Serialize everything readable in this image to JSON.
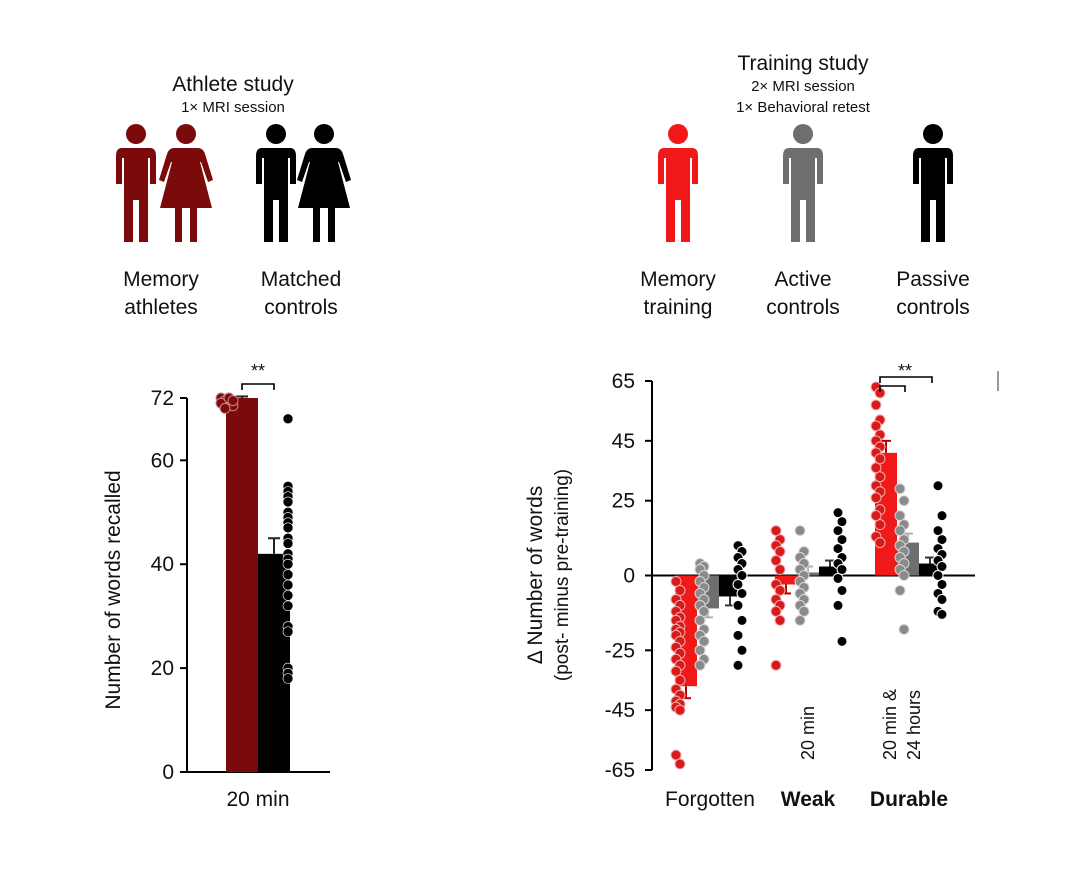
{
  "colors": {
    "athletes": "#7b0a0a",
    "matched_controls": "#000000",
    "memory_training": "#f01818",
    "active_controls": "#6e6e6e",
    "passive_controls": "#000000",
    "dot_red": "#d81a1a",
    "dot_grey": "#8a8a8a"
  },
  "athlete_study": {
    "title": "Athlete study",
    "subtitle": "1× MRI session",
    "groups": [
      {
        "label_line1": "Memory",
        "label_line2": "athletes"
      },
      {
        "label_line1": "Matched",
        "label_line2": "controls"
      }
    ]
  },
  "training_study": {
    "title": "Training study",
    "subtitle_line1": "2× MRI session",
    "subtitle_line2": "1× Behavioral retest",
    "groups": [
      {
        "label_line1": "Memory",
        "label_line2": "training"
      },
      {
        "label_line1": "Active",
        "label_line2": "controls"
      },
      {
        "label_line1": "Passive",
        "label_line2": "controls"
      }
    ]
  },
  "chart_data": [
    {
      "type": "bar",
      "ylabel": "Number of words recalled",
      "categories": [
        "20 min"
      ],
      "ylim": [
        0,
        72
      ],
      "yticks": [
        0,
        20,
        40,
        60,
        72
      ],
      "series": [
        {
          "values": [
            72
          ],
          "error": [
            0.3
          ]
        },
        {
          "values": [
            42
          ],
          "error": [
            3
          ]
        }
      ],
      "points": [
        [
          72,
          71.5,
          72,
          70.5,
          71,
          70,
          72,
          71.5
        ],
        [
          68,
          55,
          54,
          53,
          52,
          50,
          49,
          48,
          47,
          45,
          44,
          42,
          41,
          40,
          38,
          36,
          34,
          32,
          28,
          27,
          20,
          19,
          18
        ]
      ],
      "significance": "**"
    },
    {
      "type": "bar",
      "ylabel": "Δ Number of words",
      "ylabel_sub": "(post- minus pre-training)",
      "categories": [
        "Forgotten",
        "Weak",
        "Durable"
      ],
      "category_notes": [
        "",
        "20 min",
        "20 min &",
        "24 hours"
      ],
      "ylim": [
        -65,
        65
      ],
      "yticks": [
        -65,
        -45,
        -25,
        0,
        25,
        45,
        65
      ],
      "series": [
        {
          "values": [
            -37,
            -3,
            41
          ],
          "error": [
            4,
            3,
            4
          ]
        },
        {
          "values": [
            -11,
            1,
            11
          ],
          "error": [
            3,
            2,
            3
          ]
        },
        {
          "values": [
            -7,
            3,
            4
          ],
          "error": [
            3,
            2,
            2
          ]
        }
      ],
      "points": [
        [
          [
            -2,
            -5,
            -8,
            -10,
            -12,
            -14,
            -15,
            -17,
            -18,
            -19,
            -20,
            -22,
            -24,
            -26,
            -28,
            -30,
            -32,
            -35,
            -38,
            -40,
            -42,
            -43,
            -44,
            -45,
            -60,
            -63
          ],
          [
            15,
            12,
            10,
            8,
            5,
            2,
            -3,
            -5,
            -8,
            -10,
            -12,
            -15,
            -30
          ],
          [
            63,
            61,
            57,
            52,
            50,
            47,
            45,
            43,
            41,
            39,
            36,
            33,
            30,
            28,
            26,
            22,
            20,
            17,
            13,
            11
          ]
        ],
        [
          [
            4,
            3,
            2,
            0,
            -2,
            -4,
            -6,
            -8,
            -10,
            -12,
            -15,
            -18,
            -20,
            -22,
            -25,
            -28,
            -30
          ],
          [
            15,
            8,
            6,
            4,
            2,
            0,
            -2,
            -4,
            -6,
            -8,
            -10,
            -12,
            -15
          ],
          [
            29,
            25,
            20,
            17,
            15,
            12,
            10,
            8,
            6,
            4,
            2,
            0,
            -5,
            -18
          ]
        ],
        [
          [
            10,
            8,
            6,
            4,
            2,
            0,
            -3,
            -6,
            -10,
            -15,
            -20,
            -25,
            -30
          ],
          [
            21,
            18,
            15,
            12,
            9,
            6,
            4,
            2,
            -1,
            -5,
            -10,
            -22
          ],
          [
            30,
            20,
            15,
            12,
            9,
            7,
            5,
            3,
            0,
            -3,
            -6,
            -8,
            -12,
            -13
          ]
        ]
      ],
      "significance": "**"
    }
  ]
}
